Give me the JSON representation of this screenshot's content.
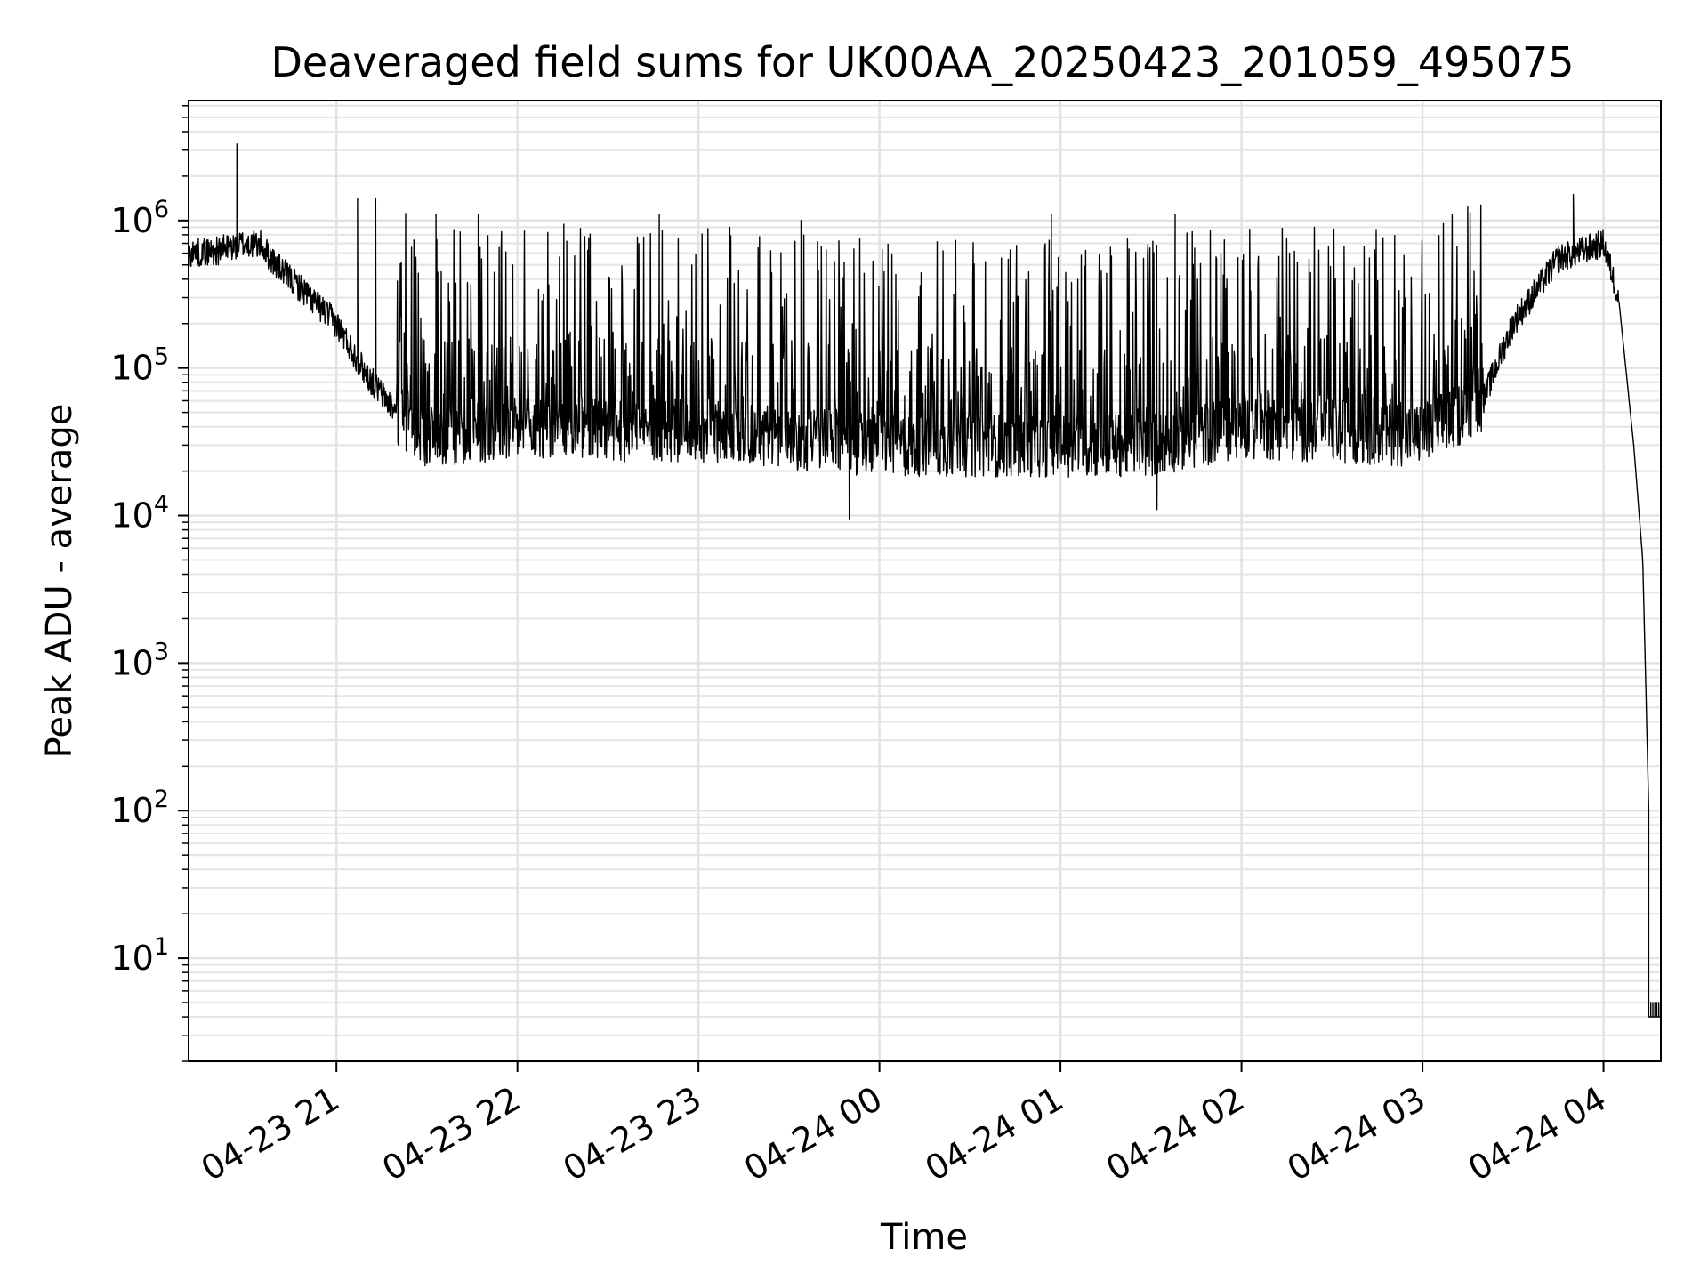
{
  "chart_data": {
    "type": "line",
    "title": "Deaveraged field sums for UK00AA_20250423_201059_495075",
    "xlabel": "Time",
    "ylabel": "Peak ADU - average",
    "x_range": [
      "2025-04-23 20:11",
      "2025-04-24 04:19"
    ],
    "ylim": [
      2,
      6500000
    ],
    "yscale": "log",
    "grid": true,
    "x_ticks": [
      {
        "t": "2025-04-23 21:00",
        "label": "04-23 21"
      },
      {
        "t": "2025-04-23 22:00",
        "label": "04-23 22"
      },
      {
        "t": "2025-04-23 23:00",
        "label": "04-23 23"
      },
      {
        "t": "2025-04-24 00:00",
        "label": "04-24 00"
      },
      {
        "t": "2025-04-24 01:00",
        "label": "04-24 01"
      },
      {
        "t": "2025-04-24 02:00",
        "label": "04-24 02"
      },
      {
        "t": "2025-04-24 03:00",
        "label": "04-24 03"
      },
      {
        "t": "2025-04-24 04:00",
        "label": "04-24 04"
      }
    ],
    "y_ticks": [
      {
        "value": 10,
        "base": "10",
        "exp": "1"
      },
      {
        "value": 100,
        "base": "10",
        "exp": "2"
      },
      {
        "value": 1000,
        "base": "10",
        "exp": "3"
      },
      {
        "value": 10000,
        "base": "10",
        "exp": "4"
      },
      {
        "value": 100000,
        "base": "10",
        "exp": "5"
      },
      {
        "value": 1000000,
        "base": "10",
        "exp": "6"
      }
    ],
    "series": [
      {
        "color": "#000000",
        "baseline_profile": [
          {
            "t": "2025-04-23 20:11",
            "y": 600000
          },
          {
            "t": "2025-04-23 20:20",
            "y": 620000
          },
          {
            "t": "2025-04-23 20:30",
            "y": 700000
          },
          {
            "t": "2025-04-23 20:35",
            "y": 680000
          },
          {
            "t": "2025-04-23 20:40",
            "y": 500000
          },
          {
            "t": "2025-04-23 20:50",
            "y": 320000
          },
          {
            "t": "2025-04-23 21:00",
            "y": 200000
          },
          {
            "t": "2025-04-23 21:10",
            "y": 90000
          },
          {
            "t": "2025-04-23 21:20",
            "y": 50000
          },
          {
            "t": "2025-04-23 21:30",
            "y": 35000
          },
          {
            "t": "2025-04-23 22:00",
            "y": 38000
          },
          {
            "t": "2025-04-23 23:00",
            "y": 38000
          },
          {
            "t": "2025-04-24 00:00",
            "y": 30000
          },
          {
            "t": "2025-04-24 01:00",
            "y": 30000
          },
          {
            "t": "2025-04-24 01:30",
            "y": 30000
          },
          {
            "t": "2025-04-24 02:00",
            "y": 40000
          },
          {
            "t": "2025-04-24 03:00",
            "y": 35000
          },
          {
            "t": "2025-04-24 03:20",
            "y": 60000
          },
          {
            "t": "2025-04-24 03:30",
            "y": 200000
          },
          {
            "t": "2025-04-24 03:45",
            "y": 550000
          },
          {
            "t": "2025-04-24 04:00",
            "y": 700000
          },
          {
            "t": "2025-04-24 04:05",
            "y": 300000
          },
          {
            "t": "2025-04-24 04:10",
            "y": 30000
          },
          {
            "t": "2025-04-24 04:13",
            "y": 5000
          },
          {
            "t": "2025-04-24 04:15",
            "y": 100
          }
        ],
        "tail": [
          {
            "t": "2025-04-24 04:15",
            "y": 4
          },
          {
            "t": "2025-04-24 04:19",
            "y": 4
          }
        ],
        "peaks": [
          {
            "t": "2025-04-23 20:27",
            "y": 3300000
          },
          {
            "t": "2025-04-23 21:07",
            "y": 1400000
          },
          {
            "t": "2025-04-23 21:13",
            "y": 1400000
          },
          {
            "t": "2025-04-23 21:33",
            "y": 1100000
          },
          {
            "t": "2025-04-23 21:47",
            "y": 1100000
          },
          {
            "t": "2025-04-23 22:47",
            "y": 1100000
          },
          {
            "t": "2025-04-23 23:34",
            "y": 1000000
          },
          {
            "t": "2025-04-24 00:57",
            "y": 1100000
          },
          {
            "t": "2025-04-24 01:38",
            "y": 1100000
          },
          {
            "t": "2025-04-24 03:50",
            "y": 1500000
          },
          {
            "t": "2025-04-23 23:50",
            "y": 9500
          },
          {
            "t": "2025-04-24 01:32",
            "y": 11000
          }
        ]
      }
    ]
  }
}
